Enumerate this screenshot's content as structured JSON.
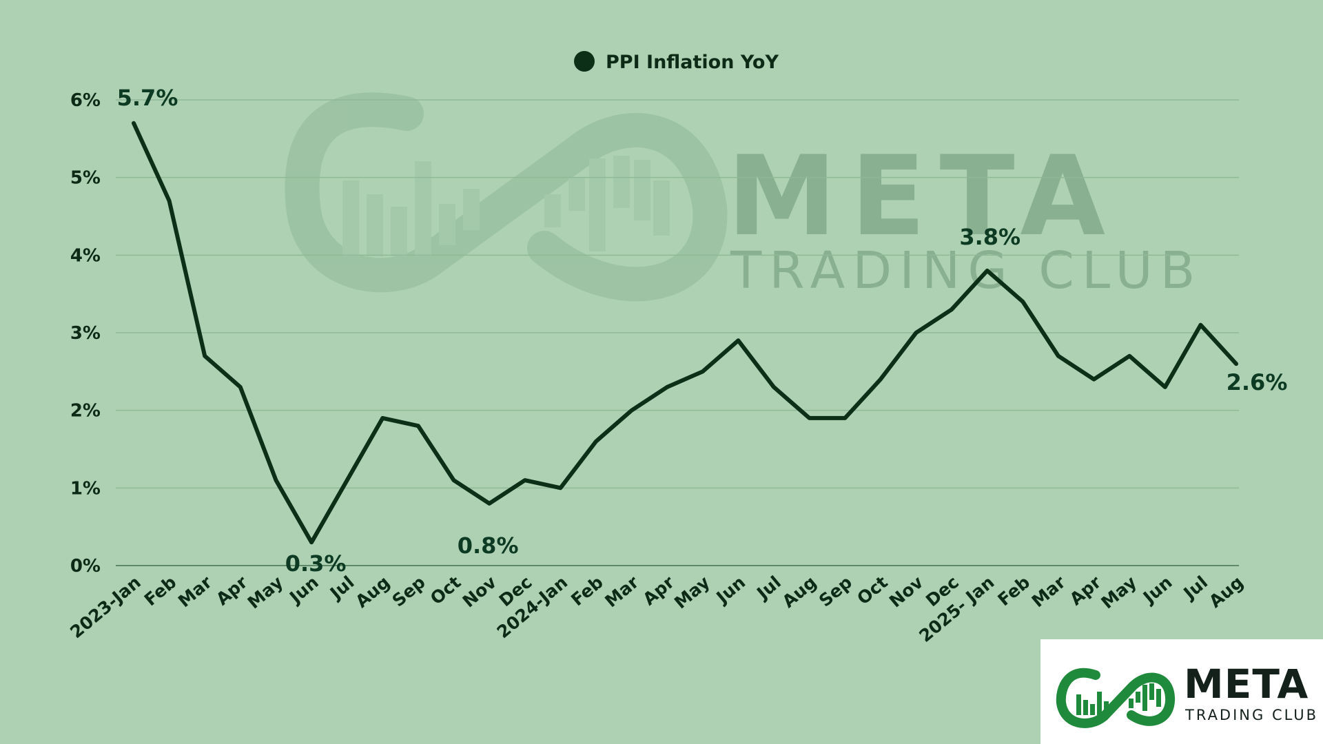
{
  "chart_data": {
    "type": "line",
    "legend": {
      "position": "top-center"
    },
    "series": [
      {
        "name": "PPI Inflation YoY",
        "color": "#0c2f17",
        "values": [
          5.7,
          4.7,
          2.7,
          2.3,
          1.1,
          0.3,
          1.1,
          1.9,
          1.8,
          1.1,
          0.8,
          1.1,
          1.0,
          1.6,
          2.0,
          2.3,
          2.5,
          2.9,
          2.3,
          1.9,
          1.9,
          2.4,
          3.0,
          3.3,
          3.8,
          3.4,
          2.7,
          2.4,
          2.7,
          2.3,
          3.1,
          2.6
        ]
      }
    ],
    "categories": [
      "2023-Jan",
      "Feb",
      "Mar",
      "Apr",
      "May",
      "Jun",
      "Jul",
      "Aug",
      "Sep",
      "Oct",
      "Nov",
      "Dec",
      "2024-Jan",
      "Feb",
      "Mar",
      "Apr",
      "May",
      "Jun",
      "Jul",
      "Aug",
      "Sep",
      "Oct",
      "Nov",
      "Dec",
      "2025- Jan",
      "Feb",
      "Mar",
      "Apr",
      "May",
      "Jun",
      "Jul",
      "Aug"
    ],
    "ylim": [
      0,
      6
    ],
    "y_ticks": [
      "0%",
      "1%",
      "2%",
      "3%",
      "4%",
      "5%",
      "6%"
    ],
    "grid": true,
    "annotations": [
      {
        "index": 0,
        "text": "5.7%"
      },
      {
        "index": 5,
        "text": "0.3%"
      },
      {
        "index": 10,
        "text": "0.8%"
      },
      {
        "index": 24,
        "text": "3.8%"
      },
      {
        "index": 31,
        "text": "2.6%"
      }
    ]
  },
  "watermark": {
    "title": "META",
    "subtitle": "TRADING CLUB",
    "icon": "infinity-chart-logo-icon"
  },
  "logo": {
    "title": "META",
    "subtitle": "TRADING CLUB",
    "icon": "infinity-chart-logo-icon",
    "accent": "#1f8a3c"
  }
}
